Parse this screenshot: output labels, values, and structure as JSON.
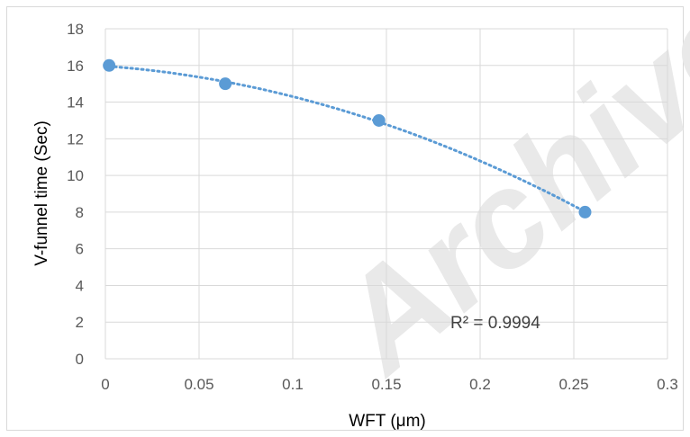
{
  "chart_data": {
    "type": "scatter",
    "title": "",
    "xlabel": "WFT (μm)",
    "ylabel": "V-funnel time (Sec)",
    "xlim": [
      0,
      0.3
    ],
    "ylim": [
      0,
      18
    ],
    "x_ticks": [
      "0",
      "0.05",
      "0.1",
      "0.15",
      "0.2",
      "0.25",
      "0.3"
    ],
    "y_ticks": [
      "0",
      "2",
      "4",
      "6",
      "8",
      "10",
      "12",
      "14",
      "16",
      "18"
    ],
    "x_tick_values": [
      0,
      0.05,
      0.1,
      0.15,
      0.2,
      0.25,
      0.3
    ],
    "y_tick_values": [
      0,
      2,
      4,
      6,
      8,
      10,
      12,
      14,
      16,
      18
    ],
    "grid": true,
    "legend": "none",
    "marker_color": "#5b9bd5",
    "trendline": {
      "type": "polynomial",
      "style": "dotted",
      "color": "#5b9bd5",
      "r_squared_label": "R² = 0.9994"
    },
    "series": [
      {
        "x": [
          0.002,
          0.064,
          0.146,
          0.256
        ],
        "y": [
          16,
          15,
          13,
          8
        ]
      }
    ]
  },
  "watermark": {
    "text": "Archive of SID",
    "color": "#e9e9e9"
  }
}
